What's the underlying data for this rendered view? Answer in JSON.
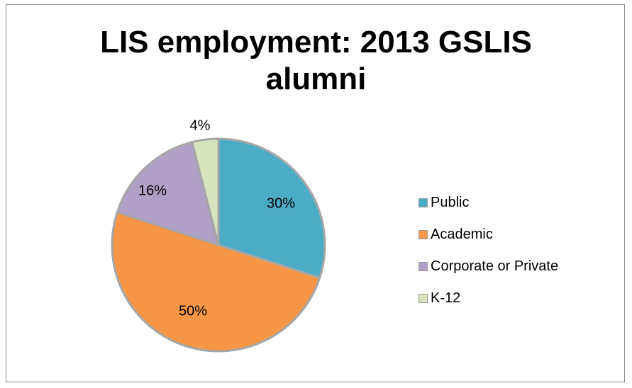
{
  "chart_data": {
    "type": "pie",
    "title_lines": [
      "LIS employment: 2013 GSLIS",
      "alumni"
    ],
    "slices": [
      {
        "name": "Public",
        "value": 30,
        "label": "30%",
        "color": "#4bacc6"
      },
      {
        "name": "Academic",
        "value": 50,
        "label": "50%",
        "color": "#f79646"
      },
      {
        "name": "Corporate or Private",
        "value": 16,
        "label": "16%",
        "color": "#b1a0c7"
      },
      {
        "name": "K-12",
        "value": 4,
        "label": "4%",
        "color": "#d7e4bd"
      }
    ],
    "legend_position": "right",
    "start_angle_deg": 0,
    "direction": "clockwise"
  }
}
